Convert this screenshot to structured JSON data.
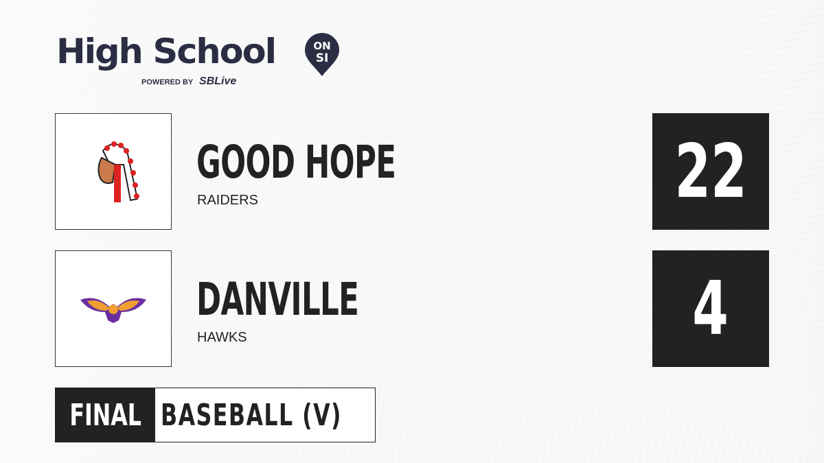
{
  "brand": {
    "title": "High School",
    "badge_top": "ON",
    "badge_bottom": "SI",
    "powered_by": "POWERED BY",
    "partner": "SBLive",
    "color": "#2b2e43",
    "accent": "#1ca9e6"
  },
  "teams": [
    {
      "name": "GOOD HOPE",
      "mascot": "RAIDERS",
      "score": "22",
      "logo_icon": "raiders-headdress-icon"
    },
    {
      "name": "DANVILLE",
      "mascot": "HAWKS",
      "score": "4",
      "logo_icon": "hawk-icon"
    }
  ],
  "status": {
    "label": "FINAL",
    "sport": "BASEBALL (V)"
  }
}
